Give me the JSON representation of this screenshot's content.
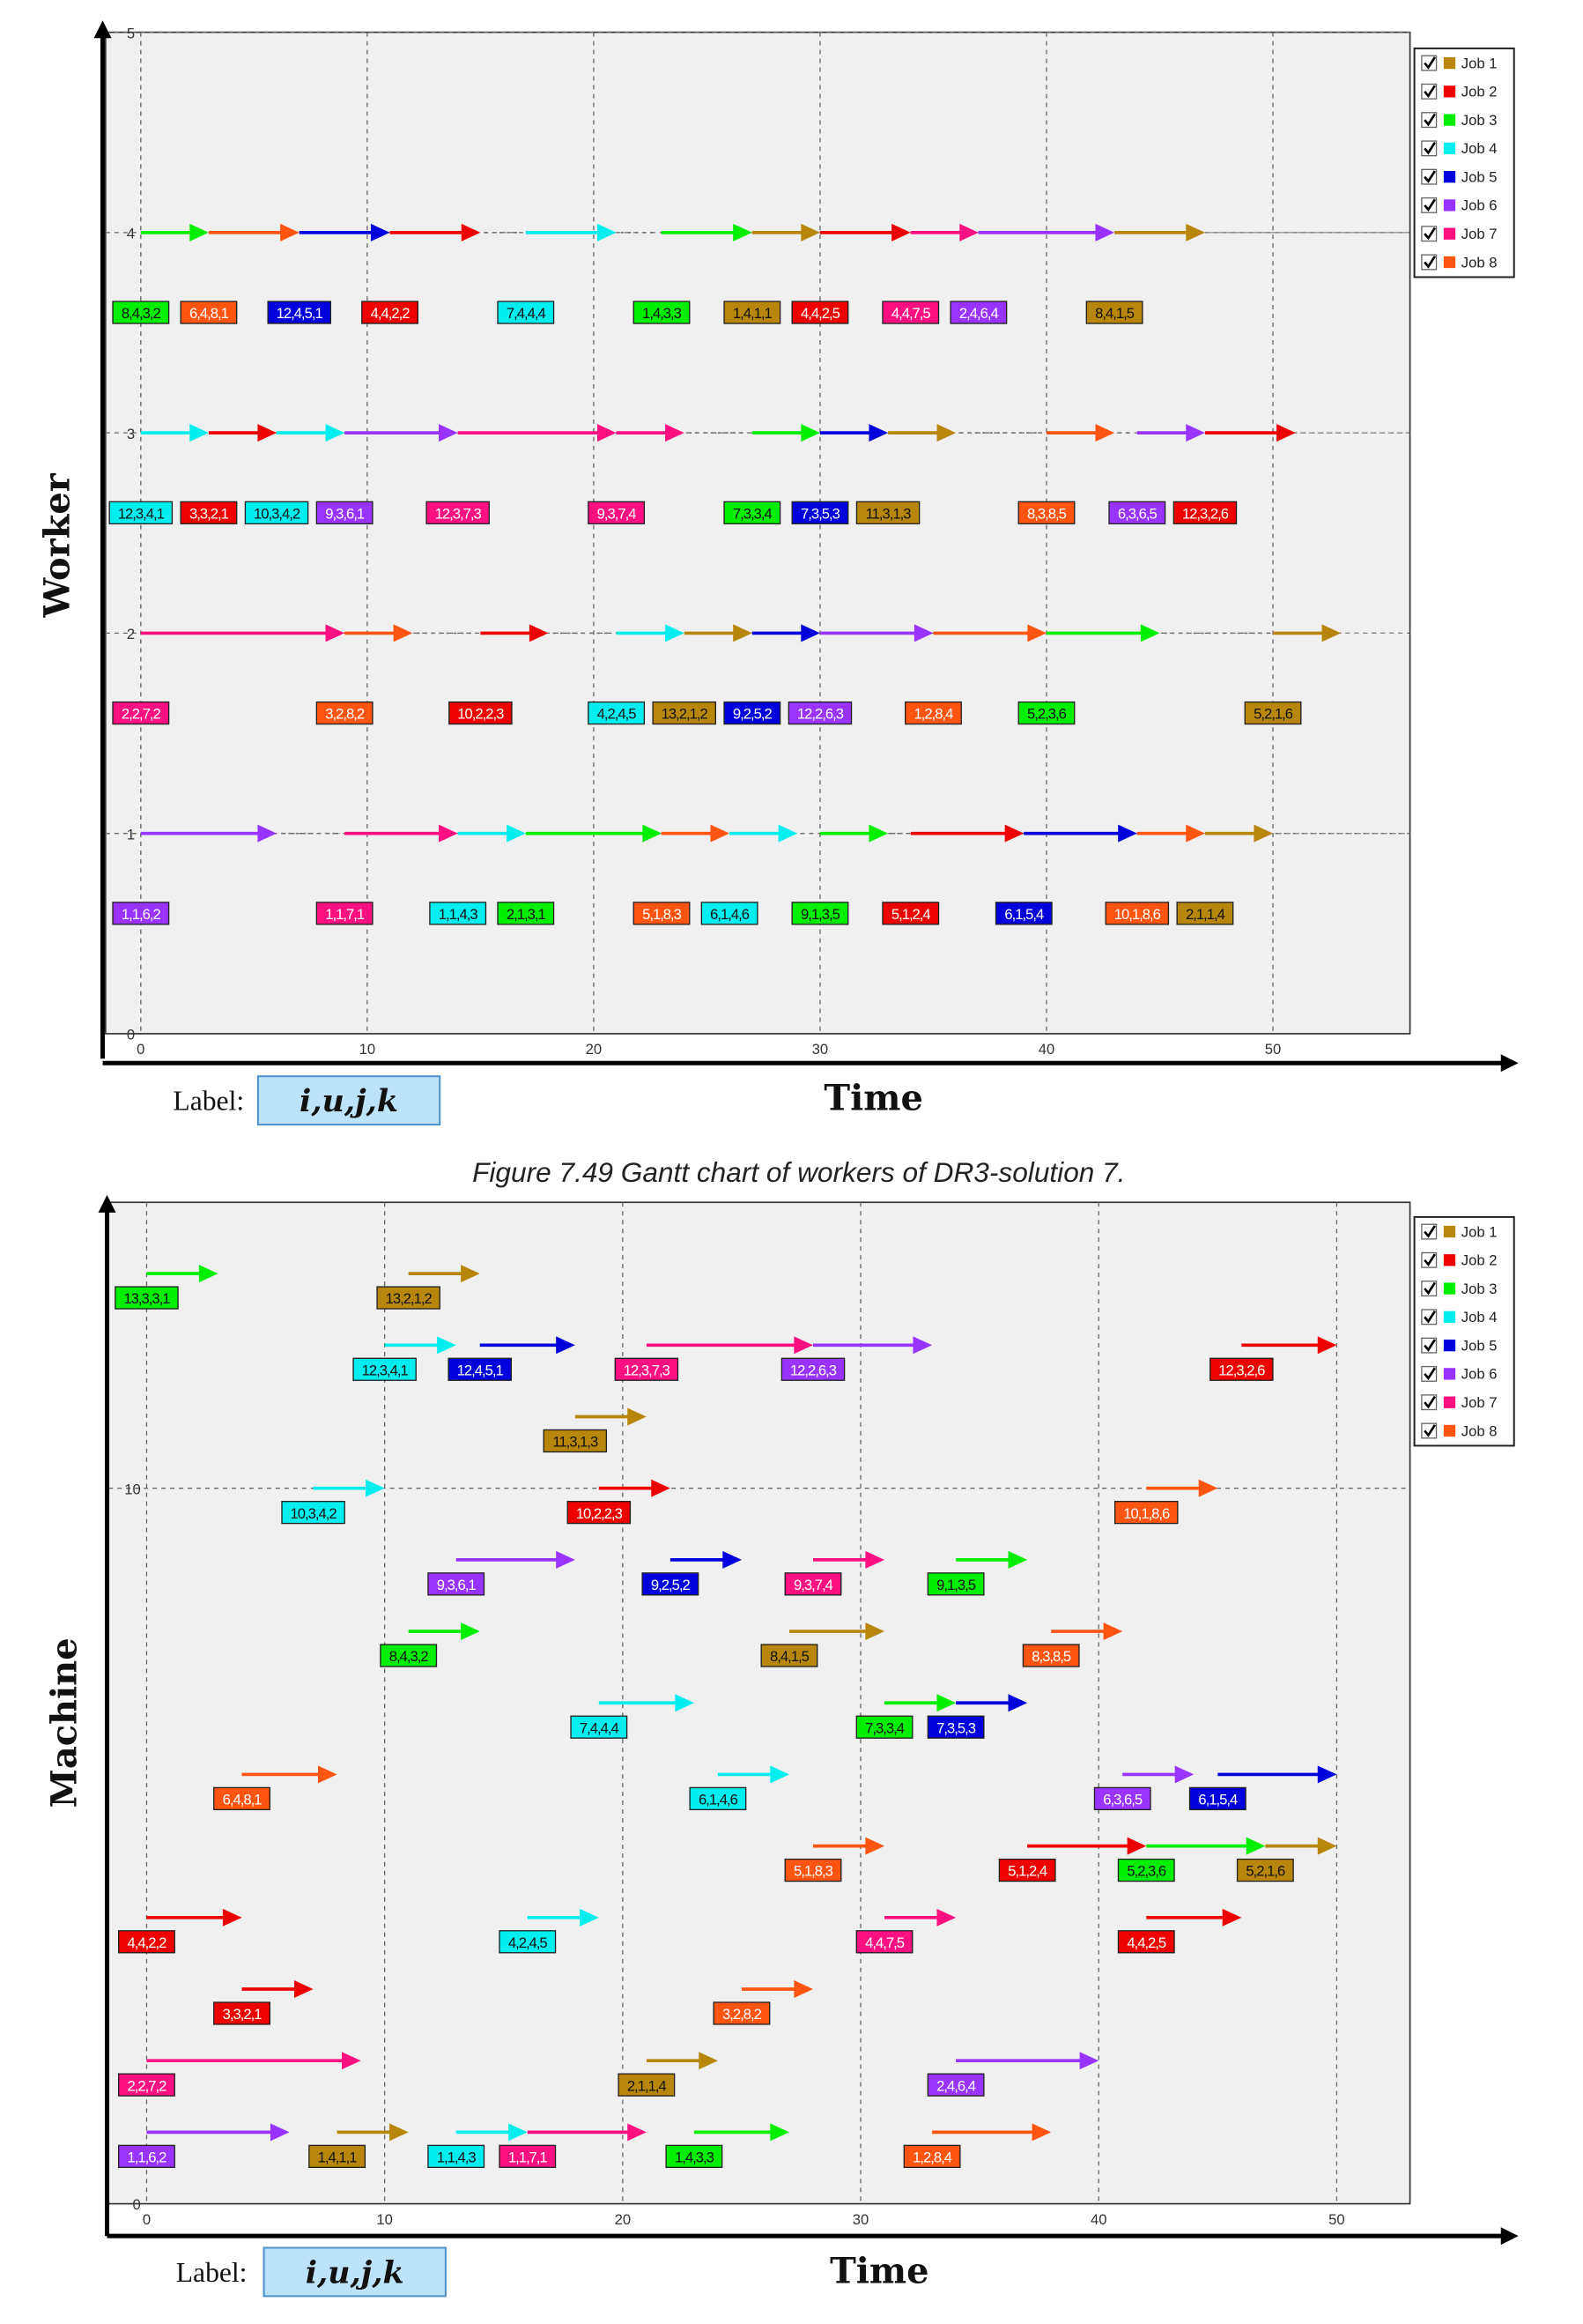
{
  "caption": "Figure 7.49 Gantt chart of workers of DR3-solution 7.",
  "legend": {
    "items": [
      {
        "label": "Job 1",
        "color": "#b8860b",
        "checked": true
      },
      {
        "label": "Job 2",
        "color": "#ee0000",
        "checked": true
      },
      {
        "label": "Job 3",
        "color": "#00ee00",
        "checked": true
      },
      {
        "label": "Job 4",
        "color": "#00eeee",
        "checked": true
      },
      {
        "label": "Job 5",
        "color": "#0000dd",
        "checked": true
      },
      {
        "label": "Job 6",
        "color": "#9933ff",
        "checked": true
      },
      {
        "label": "Job 7",
        "color": "#ff1080",
        "checked": true
      },
      {
        "label": "Job 8",
        "color": "#ff5511",
        "checked": true
      }
    ]
  },
  "chart_data": [
    {
      "type": "gantt",
      "ylabel": "Worker",
      "xlabel": "Time",
      "label_caption": "Label:",
      "label_format": "i,u,j,k",
      "xlim": [
        0,
        55
      ],
      "ylim": [
        0,
        5
      ],
      "xticks": [
        "0",
        "10",
        "20",
        "30",
        "40",
        "50"
      ],
      "yticks": [
        "0",
        "1",
        "2",
        "3",
        "4",
        "5"
      ],
      "grid": true,
      "legend_position": "top-right",
      "operations": [
        {
          "row": 4,
          "label": "8,4,3,2",
          "job": 3,
          "start": 0,
          "end": 3
        },
        {
          "row": 4,
          "label": "6,4,8,1",
          "job": 8,
          "start": 3,
          "end": 7
        },
        {
          "row": 4,
          "label": "12,4,5,1",
          "job": 5,
          "start": 7,
          "end": 11
        },
        {
          "row": 4,
          "label": "4,4,2,2",
          "job": 2,
          "start": 11,
          "end": 15
        },
        {
          "row": 4,
          "label": "7,4,4,4",
          "job": 4,
          "start": 17,
          "end": 21
        },
        {
          "row": 4,
          "label": "1,4,3,3",
          "job": 3,
          "start": 23,
          "end": 27
        },
        {
          "row": 4,
          "label": "1,4,1,1",
          "job": 1,
          "start": 27,
          "end": 30
        },
        {
          "row": 4,
          "label": "4,4,2,5",
          "job": 2,
          "start": 30,
          "end": 34
        },
        {
          "row": 4,
          "label": "4,4,7,5",
          "job": 7,
          "start": 34,
          "end": 37
        },
        {
          "row": 4,
          "label": "2,4,6,4",
          "job": 6,
          "start": 37,
          "end": 43
        },
        {
          "row": 4,
          "label": "8,4,1,5",
          "job": 1,
          "start": 43,
          "end": 47
        },
        {
          "row": 3,
          "label": "12,3,4,1",
          "job": 4,
          "start": 0,
          "end": 3
        },
        {
          "row": 3,
          "label": "3,3,2,1",
          "job": 2,
          "start": 3,
          "end": 6
        },
        {
          "row": 3,
          "label": "10,3,4,2",
          "job": 4,
          "start": 6,
          "end": 9
        },
        {
          "row": 3,
          "label": "9,3,6,1",
          "job": 6,
          "start": 9,
          "end": 14
        },
        {
          "row": 3,
          "label": "12,3,7,3",
          "job": 7,
          "start": 14,
          "end": 21
        },
        {
          "row": 3,
          "label": "9,3,7,4",
          "job": 7,
          "start": 21,
          "end": 24
        },
        {
          "row": 3,
          "label": "7,3,3,4",
          "job": 3,
          "start": 27,
          "end": 30
        },
        {
          "row": 3,
          "label": "7,3,5,3",
          "job": 5,
          "start": 30,
          "end": 33
        },
        {
          "row": 3,
          "label": "11,3,1,3",
          "job": 1,
          "start": 33,
          "end": 36
        },
        {
          "row": 3,
          "label": "8,3,8,5",
          "job": 8,
          "start": 40,
          "end": 43
        },
        {
          "row": 3,
          "label": "6,3,6,5",
          "job": 6,
          "start": 44,
          "end": 47
        },
        {
          "row": 3,
          "label": "12,3,2,6",
          "job": 2,
          "start": 47,
          "end": 51
        },
        {
          "row": 2,
          "label": "2,2,7,2",
          "job": 7,
          "start": 0,
          "end": 9
        },
        {
          "row": 2,
          "label": "3,2,8,2",
          "job": 8,
          "start": 9,
          "end": 12
        },
        {
          "row": 2,
          "label": "10,2,2,3",
          "job": 2,
          "start": 15,
          "end": 18
        },
        {
          "row": 2,
          "label": "4,2,4,5",
          "job": 4,
          "start": 21,
          "end": 24
        },
        {
          "row": 2,
          "label": "13,2,1,2",
          "job": 1,
          "start": 24,
          "end": 27
        },
        {
          "row": 2,
          "label": "9,2,5,2",
          "job": 5,
          "start": 27,
          "end": 30
        },
        {
          "row": 2,
          "label": "12,2,6,3",
          "job": 6,
          "start": 30,
          "end": 35
        },
        {
          "row": 2,
          "label": "1,2,8,4",
          "job": 8,
          "start": 35,
          "end": 40
        },
        {
          "row": 2,
          "label": "5,2,3,6",
          "job": 3,
          "start": 40,
          "end": 45
        },
        {
          "row": 2,
          "label": "5,2,1,6",
          "job": 1,
          "start": 50,
          "end": 53
        },
        {
          "row": 1,
          "label": "1,1,6,2",
          "job": 6,
          "start": 0,
          "end": 6
        },
        {
          "row": 1,
          "label": "1,1,7,1",
          "job": 7,
          "start": 9,
          "end": 14
        },
        {
          "row": 1,
          "label": "1,1,4,3",
          "job": 4,
          "start": 14,
          "end": 17
        },
        {
          "row": 1,
          "label": "2,1,3,1",
          "job": 3,
          "start": 17,
          "end": 23
        },
        {
          "row": 1,
          "label": "5,1,8,3",
          "job": 8,
          "start": 23,
          "end": 26
        },
        {
          "row": 1,
          "label": "6,1,4,6",
          "job": 4,
          "start": 26,
          "end": 29
        },
        {
          "row": 1,
          "label": "9,1,3,5",
          "job": 3,
          "start": 30,
          "end": 33
        },
        {
          "row": 1,
          "label": "5,1,2,4",
          "job": 2,
          "start": 34,
          "end": 39
        },
        {
          "row": 1,
          "label": "6,1,5,4",
          "job": 5,
          "start": 39,
          "end": 44
        },
        {
          "row": 1,
          "label": "10,1,8,6",
          "job": 8,
          "start": 44,
          "end": 47
        },
        {
          "row": 1,
          "label": "2,1,1,4",
          "job": 1,
          "start": 47,
          "end": 50
        }
      ]
    },
    {
      "type": "gantt",
      "ylabel": "Machine",
      "xlabel": "Time",
      "label_caption": "Label:",
      "label_format": "i,u,j,k",
      "xlim": [
        0,
        53
      ],
      "ylim": [
        0,
        14
      ],
      "xticks": [
        "0",
        "10",
        "20",
        "30",
        "40",
        "50"
      ],
      "yticks": [
        "0",
        "10"
      ],
      "grid": true,
      "legend_position": "top-right",
      "operations": [
        {
          "row": 13,
          "label": "13,3,3,1",
          "job": 3,
          "start": 0,
          "end": 3
        },
        {
          "row": 13,
          "label": "13,2,1,2",
          "job": 1,
          "start": 11,
          "end": 14
        },
        {
          "row": 12,
          "label": "12,3,4,1",
          "job": 4,
          "start": 10,
          "end": 13
        },
        {
          "row": 12,
          "label": "12,4,5,1",
          "job": 5,
          "start": 14,
          "end": 18
        },
        {
          "row": 12,
          "label": "12,3,7,3",
          "job": 7,
          "start": 21,
          "end": 28
        },
        {
          "row": 12,
          "label": "12,2,6,3",
          "job": 6,
          "start": 28,
          "end": 33
        },
        {
          "row": 12,
          "label": "12,3,2,6",
          "job": 2,
          "start": 46,
          "end": 50
        },
        {
          "row": 11,
          "label": "11,3,1,3",
          "job": 1,
          "start": 18,
          "end": 21
        },
        {
          "row": 10,
          "label": "10,3,4,2",
          "job": 4,
          "start": 7,
          "end": 10
        },
        {
          "row": 10,
          "label": "10,2,2,3",
          "job": 2,
          "start": 19,
          "end": 22
        },
        {
          "row": 10,
          "label": "10,1,8,6",
          "job": 8,
          "start": 42,
          "end": 45
        },
        {
          "row": 9,
          "label": "9,3,6,1",
          "job": 6,
          "start": 13,
          "end": 18
        },
        {
          "row": 9,
          "label": "9,2,5,2",
          "job": 5,
          "start": 22,
          "end": 25
        },
        {
          "row": 9,
          "label": "9,3,7,4",
          "job": 7,
          "start": 28,
          "end": 31
        },
        {
          "row": 9,
          "label": "9,1,3,5",
          "job": 3,
          "start": 34,
          "end": 37
        },
        {
          "row": 8,
          "label": "8,4,3,2",
          "job": 3,
          "start": 11,
          "end": 14
        },
        {
          "row": 8,
          "label": "8,4,1,5",
          "job": 1,
          "start": 27,
          "end": 31
        },
        {
          "row": 8,
          "label": "8,3,8,5",
          "job": 8,
          "start": 38,
          "end": 41
        },
        {
          "row": 7,
          "label": "7,4,4,4",
          "job": 4,
          "start": 19,
          "end": 23
        },
        {
          "row": 7,
          "label": "7,3,3,4",
          "job": 3,
          "start": 31,
          "end": 34
        },
        {
          "row": 7,
          "label": "7,3,5,3",
          "job": 5,
          "start": 34,
          "end": 37
        },
        {
          "row": 6,
          "label": "6,4,8,1",
          "job": 8,
          "start": 4,
          "end": 8
        },
        {
          "row": 6,
          "label": "6,1,4,6",
          "job": 4,
          "start": 24,
          "end": 27
        },
        {
          "row": 6,
          "label": "6,3,6,5",
          "job": 6,
          "start": 41,
          "end": 44
        },
        {
          "row": 6,
          "label": "6,1,5,4",
          "job": 5,
          "start": 45,
          "end": 50
        },
        {
          "row": 5,
          "label": "5,1,8,3",
          "job": 8,
          "start": 28,
          "end": 31
        },
        {
          "row": 5,
          "label": "5,1,2,4",
          "job": 2,
          "start": 37,
          "end": 42
        },
        {
          "row": 5,
          "label": "5,2,3,6",
          "job": 3,
          "start": 42,
          "end": 47
        },
        {
          "row": 5,
          "label": "5,2,1,6",
          "job": 1,
          "start": 47,
          "end": 50
        },
        {
          "row": 4,
          "label": "4,4,2,2",
          "job": 2,
          "start": 0,
          "end": 4
        },
        {
          "row": 4,
          "label": "4,2,4,5",
          "job": 4,
          "start": 16,
          "end": 19
        },
        {
          "row": 4,
          "label": "4,4,7,5",
          "job": 7,
          "start": 31,
          "end": 34
        },
        {
          "row": 4,
          "label": "4,4,2,5",
          "job": 2,
          "start": 42,
          "end": 46
        },
        {
          "row": 3,
          "label": "3,3,2,1",
          "job": 2,
          "start": 4,
          "end": 7
        },
        {
          "row": 3,
          "label": "3,2,8,2",
          "job": 8,
          "start": 25,
          "end": 28
        },
        {
          "row": 2,
          "label": "2,2,7,2",
          "job": 7,
          "start": 0,
          "end": 9
        },
        {
          "row": 2,
          "label": "2,1,1,4",
          "job": 1,
          "start": 21,
          "end": 24
        },
        {
          "row": 2,
          "label": "2,4,6,4",
          "job": 6,
          "start": 34,
          "end": 40
        },
        {
          "row": 1,
          "label": "1,1,6,2",
          "job": 6,
          "start": 0,
          "end": 6
        },
        {
          "row": 1,
          "label": "1,4,1,1",
          "job": 1,
          "start": 8,
          "end": 11
        },
        {
          "row": 1,
          "label": "1,1,4,3",
          "job": 4,
          "start": 13,
          "end": 16
        },
        {
          "row": 1,
          "label": "1,1,7,1",
          "job": 7,
          "start": 16,
          "end": 21
        },
        {
          "row": 1,
          "label": "1,4,3,3",
          "job": 3,
          "start": 23,
          "end": 27
        },
        {
          "row": 1,
          "label": "1,2,8,4",
          "job": 8,
          "start": 33,
          "end": 38
        }
      ]
    }
  ]
}
